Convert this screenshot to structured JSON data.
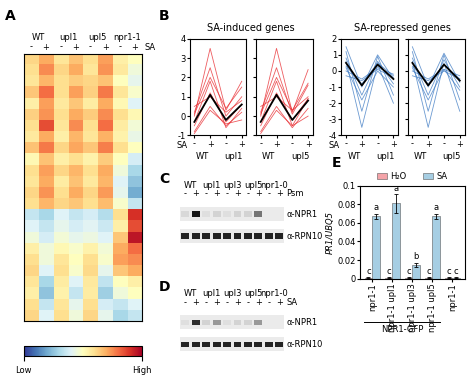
{
  "chart_data": [
    {
      "type": "heatmap",
      "panel": "A",
      "genotypes": [
        "WT",
        "upl1",
        "upl5",
        "npr1-1"
      ],
      "treatments": [
        "-",
        "+",
        "-",
        "+",
        "-",
        "+",
        "-",
        "+"
      ],
      "treatment_label": "SA",
      "tick_labels": false,
      "cells": [
        [
          0.62,
          0.7,
          0.58,
          0.66,
          0.6,
          0.72,
          0.55,
          0.5
        ],
        [
          0.6,
          0.75,
          0.62,
          0.7,
          0.58,
          0.74,
          0.57,
          0.45
        ],
        [
          0.58,
          0.68,
          0.6,
          0.64,
          0.62,
          0.66,
          0.5,
          0.42
        ],
        [
          0.65,
          0.8,
          0.6,
          0.72,
          0.63,
          0.78,
          0.58,
          0.48
        ],
        [
          0.55,
          0.72,
          0.57,
          0.65,
          0.56,
          0.7,
          0.52,
          0.4
        ],
        [
          0.63,
          0.74,
          0.6,
          0.7,
          0.64,
          0.75,
          0.6,
          0.52
        ],
        [
          0.6,
          0.85,
          0.58,
          0.75,
          0.6,
          0.8,
          0.56,
          0.46
        ],
        [
          0.57,
          0.7,
          0.55,
          0.68,
          0.58,
          0.69,
          0.54,
          0.43
        ],
        [
          0.66,
          0.78,
          0.62,
          0.71,
          0.65,
          0.77,
          0.6,
          0.5
        ],
        [
          0.52,
          0.66,
          0.55,
          0.6,
          0.54,
          0.64,
          0.5,
          0.38
        ],
        [
          0.6,
          0.72,
          0.62,
          0.68,
          0.6,
          0.7,
          0.45,
          0.3
        ],
        [
          0.58,
          0.7,
          0.56,
          0.66,
          0.57,
          0.68,
          0.4,
          0.25
        ],
        [
          0.62,
          0.74,
          0.6,
          0.7,
          0.62,
          0.73,
          0.42,
          0.2
        ],
        [
          0.6,
          0.68,
          0.62,
          0.65,
          0.6,
          0.67,
          0.48,
          0.35
        ],
        [
          0.35,
          0.3,
          0.4,
          0.35,
          0.38,
          0.32,
          0.6,
          0.9
        ],
        [
          0.4,
          0.35,
          0.42,
          0.38,
          0.41,
          0.36,
          0.55,
          0.85
        ],
        [
          0.45,
          0.38,
          0.46,
          0.42,
          0.44,
          0.4,
          0.65,
          0.95
        ],
        [
          0.55,
          0.45,
          0.52,
          0.48,
          0.54,
          0.46,
          0.7,
          0.8
        ],
        [
          0.6,
          0.45,
          0.58,
          0.5,
          0.6,
          0.48,
          0.72,
          0.75
        ],
        [
          0.62,
          0.4,
          0.6,
          0.48,
          0.61,
          0.42,
          0.65,
          0.7
        ],
        [
          0.58,
          0.3,
          0.56,
          0.4,
          0.57,
          0.34,
          0.5,
          0.55
        ],
        [
          0.55,
          0.25,
          0.54,
          0.35,
          0.56,
          0.28,
          0.45,
          0.5
        ],
        [
          0.6,
          0.35,
          0.58,
          0.42,
          0.6,
          0.38,
          0.35,
          0.4
        ],
        [
          0.62,
          0.4,
          0.6,
          0.45,
          0.62,
          0.42,
          0.3,
          0.35
        ]
      ],
      "colorbar": {
        "range": [
          0,
          1
        ],
        "ticks": [
          {
            "value": 0,
            "label": "Low"
          },
          {
            "value": 1,
            "label": "High"
          }
        ]
      }
    },
    {
      "type": "line",
      "panel": "B",
      "title": "SA-induced genes",
      "color": "#e8262b",
      "x_label": "SA",
      "categories": [
        "-",
        "+",
        "-",
        "+"
      ],
      "ylim": [
        -1,
        4
      ],
      "yticks": [
        -1,
        0,
        1,
        2,
        3,
        4
      ],
      "panels": [
        {
          "genotypes": [
            "WT",
            "upl1"
          ],
          "lines": [
            [
              -0.5,
              1.2,
              -0.3,
              0.6
            ],
            [
              0.2,
              2.5,
              0.0,
              1.0
            ],
            [
              -0.8,
              0.5,
              -0.5,
              0.2
            ],
            [
              0.0,
              3.5,
              0.3,
              1.8
            ],
            [
              -0.3,
              1.8,
              -0.6,
              0.4
            ],
            [
              0.5,
              1.0,
              0.2,
              0.8
            ],
            [
              -0.9,
              0.3,
              -0.4,
              -0.2
            ],
            [
              0.1,
              2.0,
              0.4,
              1.5
            ]
          ],
          "mean": [
            -0.3,
            1.1,
            -0.2,
            0.6
          ]
        },
        {
          "genotypes": [
            "WT",
            "upl5"
          ],
          "lines": [
            [
              -0.5,
              1.2,
              -0.2,
              0.9
            ],
            [
              0.2,
              2.5,
              0.1,
              1.6
            ],
            [
              -0.8,
              0.5,
              -0.6,
              0.4
            ],
            [
              0.0,
              3.5,
              0.2,
              2.4
            ],
            [
              -0.3,
              1.8,
              -0.5,
              0.9
            ],
            [
              0.5,
              1.0,
              0.3,
              1.0
            ],
            [
              -0.9,
              0.3,
              -0.5,
              0.0
            ],
            [
              0.1,
              2.0,
              0.3,
              1.7
            ]
          ],
          "mean": [
            -0.3,
            1.1,
            -0.2,
            0.8
          ]
        }
      ]
    },
    {
      "type": "line",
      "title": "SA-repressed genes",
      "color": "#3a78c2",
      "x_label": "SA",
      "categories": [
        "-",
        "+",
        "-",
        "+"
      ],
      "ylim": [
        -4,
        2
      ],
      "yticks": [
        -4,
        -3,
        -2,
        -1,
        0,
        1,
        2
      ],
      "panels": [
        {
          "genotypes": [
            "WT",
            "upl1"
          ],
          "lines": [
            [
              0.8,
              -1.5,
              0.6,
              -0.8
            ],
            [
              0.3,
              -0.8,
              0.5,
              -0.3
            ],
            [
              1.2,
              -2.5,
              0.9,
              -1.5
            ],
            [
              0.0,
              -0.5,
              0.2,
              -0.2
            ],
            [
              0.6,
              -3.5,
              0.4,
              -2.0
            ],
            [
              1.5,
              -1.0,
              1.0,
              -0.5
            ],
            [
              0.2,
              -1.8,
              0.0,
              -1.0
            ],
            [
              -0.3,
              -0.6,
              0.1,
              -0.4
            ]
          ],
          "mean": [
            0.5,
            -0.9,
            0.4,
            -0.5
          ]
        },
        {
          "genotypes": [
            "WT",
            "upl5"
          ],
          "lines": [
            [
              0.8,
              -1.5,
              0.7,
              -1.0
            ],
            [
              0.3,
              -0.8,
              0.4,
              -0.5
            ],
            [
              1.2,
              -2.5,
              1.0,
              -1.8
            ],
            [
              0.0,
              -0.5,
              0.1,
              -0.3
            ],
            [
              0.6,
              -3.5,
              0.5,
              -2.5
            ],
            [
              1.5,
              -1.0,
              1.1,
              -0.7
            ],
            [
              0.2,
              -1.8,
              0.1,
              -1.2
            ],
            [
              -0.3,
              -0.6,
              0.0,
              -0.5
            ]
          ],
          "mean": [
            0.5,
            -0.9,
            0.4,
            -0.6
          ]
        }
      ]
    },
    {
      "type": "blot",
      "panel": "C",
      "treatment_label": "Psm",
      "genotypes": [
        "WT",
        "upl1",
        "upl3",
        "upl5",
        "npr1-0"
      ],
      "treatments": [
        "-",
        "+",
        "-",
        "+",
        "-",
        "+",
        "-",
        "+",
        "-",
        "+"
      ],
      "rows": [
        {
          "label": "α-NPR1",
          "intensity": [
            0.08,
            0.9,
            0.05,
            0.1,
            0.05,
            0.1,
            0.1,
            0.5,
            0.0,
            0.0
          ]
        },
        {
          "label": "α-RPN10",
          "intensity": [
            0.85,
            0.85,
            0.85,
            0.85,
            0.85,
            0.85,
            0.85,
            0.85,
            0.85,
            0.85
          ]
        }
      ]
    },
    {
      "type": "blot",
      "panel": "D",
      "treatment_label": "SA",
      "genotypes": [
        "WT",
        "upl1",
        "upl3",
        "upl5",
        "npr1-0"
      ],
      "treatments": [
        "-",
        "+",
        "-",
        "+",
        "-",
        "+",
        "-",
        "+",
        "-",
        "+"
      ],
      "rows": [
        {
          "label": "α-NPR1",
          "intensity": [
            0.05,
            0.8,
            0.1,
            0.35,
            0.05,
            0.1,
            0.1,
            0.35,
            0.0,
            0.0
          ]
        },
        {
          "label": "α-RPN10",
          "intensity": [
            0.85,
            0.85,
            0.85,
            0.85,
            0.85,
            0.85,
            0.85,
            0.85,
            0.85,
            0.85
          ]
        }
      ]
    },
    {
      "type": "bar",
      "panel": "E",
      "ylabel": "PR1/UBQ5",
      "categories": [
        "npr1-1",
        "npr1-1 upl1",
        "npr1-1 upl3",
        "npr1-1 upl5",
        "npr1-1"
      ],
      "group": {
        "label": "NPR1-GFP",
        "categories": [
          0,
          1,
          2,
          3
        ]
      },
      "ylim": [
        0,
        0.1
      ],
      "yticks": [
        0,
        0.02,
        0.04,
        0.06,
        0.08,
        0.1
      ],
      "legend": "top",
      "series": [
        {
          "name": "H₂O",
          "color": "#f4a3a8",
          "values": [
            0.001,
            0.001,
            0.001,
            0.001,
            0.001
          ],
          "errors": [
            0.0003,
            0.0003,
            0.0003,
            0.0003,
            0.0003
          ],
          "letters": [
            "c",
            "c",
            "c",
            "c",
            "c"
          ]
        },
        {
          "name": "SA",
          "color": "#a6cee3",
          "values": [
            0.067,
            0.081,
            0.015,
            0.067,
            0.001
          ],
          "errors": [
            0.003,
            0.01,
            0.002,
            0.003,
            0.0003
          ],
          "letters": [
            "a",
            "a",
            "b",
            "a",
            "c"
          ]
        }
      ]
    }
  ]
}
